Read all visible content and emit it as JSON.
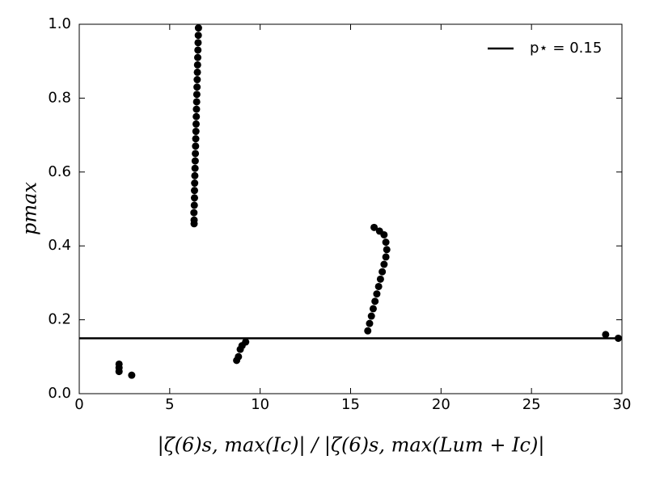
{
  "chart_data": {
    "type": "scatter",
    "xlabel": "|ζ(6)s, max(Ic)| / |ζ(6)s, max(Lum + Ic)|",
    "ylabel": "pmax",
    "x": [
      6.35,
      6.35,
      6.34,
      6.36,
      6.37,
      6.37,
      6.38,
      6.39,
      6.4,
      6.41,
      6.42,
      6.43,
      6.44,
      6.45,
      6.46,
      6.47,
      6.48,
      6.49,
      6.5,
      6.51,
      6.52,
      6.53,
      6.54,
      6.55,
      6.56,
      6.57,
      6.58,
      6.59,
      15.95,
      16.05,
      16.15,
      16.25,
      16.35,
      16.45,
      16.55,
      16.65,
      16.75,
      16.85,
      16.95,
      17.0,
      16.95,
      16.85,
      16.6,
      16.3,
      8.7,
      8.8,
      8.9,
      9.0,
      9.2,
      2.2,
      2.2,
      2.2,
      2.9,
      29.1,
      29.8
    ],
    "y": [
      0.46,
      0.47,
      0.49,
      0.51,
      0.53,
      0.55,
      0.57,
      0.59,
      0.61,
      0.63,
      0.65,
      0.67,
      0.69,
      0.71,
      0.73,
      0.75,
      0.77,
      0.79,
      0.81,
      0.83,
      0.85,
      0.87,
      0.89,
      0.91,
      0.93,
      0.95,
      0.97,
      0.99,
      0.17,
      0.19,
      0.21,
      0.23,
      0.25,
      0.27,
      0.29,
      0.31,
      0.33,
      0.35,
      0.37,
      0.39,
      0.41,
      0.43,
      0.44,
      0.45,
      0.09,
      0.1,
      0.12,
      0.13,
      0.14,
      0.06,
      0.07,
      0.08,
      0.05,
      0.16,
      0.15
    ],
    "color": "#000000",
    "hlines": [
      {
        "y": 0.15,
        "label": "p⋆ = 0.15",
        "color": "#000000"
      }
    ],
    "legend": "upper right",
    "xlim": [
      0,
      30
    ],
    "xticks": [
      0,
      5,
      10,
      15,
      20,
      25,
      30
    ],
    "ylim": [
      0,
      1
    ],
    "yticks": [
      {
        "value": 0,
        "label": "0.0"
      },
      0.2,
      0.4,
      0.6,
      0.8,
      {
        "value": 1,
        "label": "1.0"
      }
    ]
  }
}
